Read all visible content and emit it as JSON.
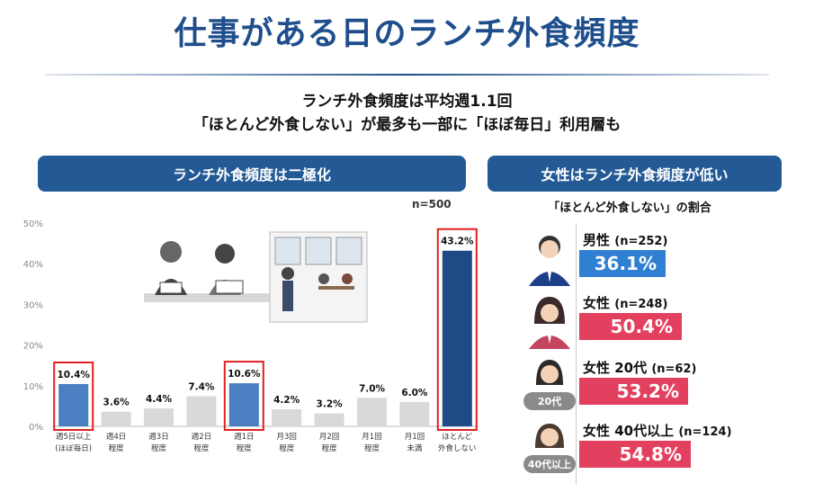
{
  "title": "仕事がある日のランチ外食頻度",
  "subtitle": {
    "line1": "ランチ外食頻度は平均週1.1回",
    "line2": "「ほとんど外食しない」が最多も一部に「ほぼ毎日」利用層も"
  },
  "left_panel": {
    "banner": "ランチ外食頻度は二極化",
    "n_label": "n=500"
  },
  "right_panel": {
    "banner": "女性はランチ外食頻度が低い",
    "subtitle": "「ほとんど外食しない」の割合",
    "rows": [
      {
        "label": "男性",
        "n": "(n=252)",
        "value_label": "36.1%",
        "value": 36.1,
        "tag": ""
      },
      {
        "label": "女性",
        "n": "(n=248)",
        "value_label": "50.4%",
        "value": 50.4,
        "tag": ""
      },
      {
        "label": "女性 20代",
        "n": "(n=62)",
        "value_label": "53.2%",
        "value": 53.2,
        "tag": "20代"
      },
      {
        "label": "女性 40代以上",
        "n": "(n=124)",
        "value_label": "54.8%",
        "value": 54.8,
        "tag": "40代以上"
      }
    ]
  },
  "colors": {
    "title": "#1f4e8c",
    "banner": "#235a96",
    "bar_gray": "#d9d9d9",
    "bar_blue": "#4a7fc1",
    "bar_navy": "#1f4a86",
    "highlight_border": "#e02020",
    "male_bar": "#2f7fd3",
    "female_bar": "#e3405f"
  },
  "chart_data": {
    "type": "bar",
    "title": "ランチ外食頻度は二極化",
    "ylabel": "",
    "xlabel": "",
    "ylim": [
      0,
      50
    ],
    "yticks": [
      "0%",
      "10%",
      "20%",
      "30%",
      "40%",
      "50%"
    ],
    "categories": [
      [
        "週5日以上",
        "(ほぼ毎日)"
      ],
      [
        "週4日",
        "程度"
      ],
      [
        "週3日",
        "程度"
      ],
      [
        "週2日",
        "程度"
      ],
      [
        "週1日",
        "程度"
      ],
      [
        "月3回",
        "程度"
      ],
      [
        "月2回",
        "程度"
      ],
      [
        "月1回",
        "程度"
      ],
      [
        "月1回",
        "未満"
      ],
      [
        "ほとんど",
        "外食しない"
      ]
    ],
    "values": [
      10.4,
      3.6,
      4.4,
      7.4,
      10.6,
      4.2,
      3.2,
      7.0,
      6.0,
      43.2
    ],
    "value_labels": [
      "10.4%",
      "3.6%",
      "4.4%",
      "7.4%",
      "10.6%",
      "4.2%",
      "3.2%",
      "7.0%",
      "6.0%",
      "43.2%"
    ],
    "bar_style": [
      "blue",
      "gray",
      "gray",
      "gray",
      "blue",
      "gray",
      "gray",
      "gray",
      "gray",
      "navy"
    ],
    "highlighted": [
      true,
      false,
      false,
      false,
      true,
      false,
      false,
      false,
      false,
      true
    ]
  }
}
